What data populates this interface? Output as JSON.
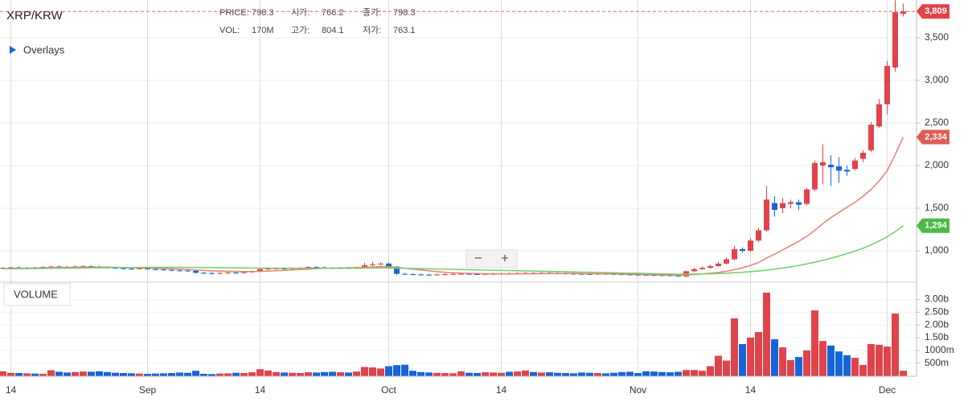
{
  "chart_data": {
    "type": "candlestick",
    "title": "XRP/KRW",
    "header": {
      "price_label": "PRICE:",
      "price": 798.3,
      "open_label": "시가:",
      "open": 766.2,
      "close_label": "종가:",
      "close": 798.3,
      "vol_label": "VOL:",
      "vol": "170M",
      "high_label": "고가:",
      "high": 804.1,
      "low_label": "저가:",
      "low": 763.1
    },
    "overlays": "Overlays",
    "volume_title": "VOLUME",
    "zoom_out": "−",
    "zoom_in": "+",
    "categories": [
      null,
      "14",
      null,
      null,
      null,
      null,
      null,
      null,
      null,
      null,
      null,
      null,
      null,
      null,
      null,
      null,
      null,
      null,
      "Sep",
      null,
      null,
      null,
      null,
      null,
      null,
      null,
      null,
      null,
      null,
      null,
      null,
      null,
      "14",
      null,
      null,
      null,
      null,
      null,
      null,
      null,
      null,
      null,
      null,
      null,
      null,
      null,
      null,
      null,
      "Oct",
      null,
      null,
      null,
      null,
      null,
      null,
      null,
      null,
      null,
      null,
      null,
      null,
      null,
      "14",
      null,
      null,
      null,
      null,
      null,
      null,
      null,
      null,
      null,
      null,
      null,
      null,
      null,
      null,
      null,
      null,
      "Nov",
      null,
      null,
      null,
      null,
      null,
      null,
      null,
      null,
      null,
      null,
      null,
      null,
      null,
      "14",
      null,
      null,
      null,
      null,
      null,
      null,
      null,
      null,
      null,
      null,
      null,
      null,
      null,
      null,
      null,
      null,
      "Dec",
      null,
      null
    ],
    "open": [
      795,
      800,
      805,
      798,
      802,
      795,
      810,
      815,
      812,
      808,
      816,
      820,
      815,
      806,
      800,
      795,
      790,
      788,
      792,
      785,
      780,
      776,
      770,
      768,
      765,
      742,
      738,
      735,
      740,
      745,
      742,
      748,
      760,
      785,
      790,
      792,
      788,
      795,
      800,
      810,
      805,
      798,
      795,
      800,
      796,
      805,
      830,
      840,
      850,
      815,
      730,
      725,
      722,
      720,
      718,
      722,
      725,
      728,
      730,
      726,
      724,
      728,
      730,
      735,
      732,
      738,
      740,
      736,
      742,
      738,
      735,
      732,
      730,
      728,
      726,
      730,
      728,
      725,
      722,
      720,
      718,
      716,
      714,
      712,
      710,
      700,
      760,
      785,
      800,
      820,
      850,
      900,
      1020,
      1000,
      1120,
      1240,
      1560,
      1500,
      1550,
      1570,
      1550,
      1720,
      2000,
      2010,
      1990,
      1950,
      1960,
      2080,
      2180,
      2460,
      2720,
      3150,
      3780
    ],
    "high": [
      810,
      815,
      815,
      812,
      812,
      820,
      825,
      825,
      822,
      826,
      830,
      830,
      825,
      816,
      810,
      805,
      800,
      802,
      802,
      795,
      790,
      786,
      780,
      778,
      775,
      752,
      748,
      750,
      755,
      755,
      758,
      770,
      795,
      800,
      802,
      802,
      805,
      810,
      820,
      820,
      815,
      808,
      810,
      810,
      815,
      860,
      870,
      865,
      860,
      820,
      740,
      735,
      732,
      730,
      732,
      735,
      738,
      740,
      740,
      736,
      738,
      740,
      745,
      745,
      748,
      750,
      750,
      752,
      752,
      748,
      745,
      742,
      740,
      738,
      740,
      740,
      738,
      735,
      732,
      730,
      728,
      726,
      724,
      722,
      720,
      770,
      800,
      815,
      835,
      870,
      920,
      1060,
      1040,
      1150,
      1270,
      1760,
      1640,
      1620,
      1600,
      1600,
      1740,
      2060,
      2250,
      2120,
      2100,
      2000,
      2090,
      2180,
      2510,
      2780,
      3230,
      3940,
      3900
    ],
    "low": [
      785,
      790,
      788,
      788,
      785,
      785,
      800,
      802,
      798,
      798,
      806,
      805,
      796,
      790,
      785,
      780,
      778,
      778,
      775,
      770,
      766,
      760,
      758,
      755,
      732,
      728,
      725,
      725,
      730,
      732,
      732,
      738,
      750,
      775,
      780,
      778,
      778,
      785,
      790,
      795,
      788,
      785,
      785,
      786,
      786,
      795,
      820,
      830,
      805,
      720,
      715,
      712,
      710,
      708,
      708,
      712,
      715,
      718,
      716,
      714,
      714,
      718,
      720,
      722,
      722,
      728,
      726,
      726,
      728,
      725,
      722,
      720,
      718,
      716,
      716,
      718,
      715,
      712,
      710,
      708,
      706,
      704,
      702,
      700,
      690,
      690,
      750,
      775,
      790,
      810,
      840,
      890,
      980,
      990,
      1100,
      1220,
      1400,
      1440,
      1500,
      1480,
      1530,
      1700,
      1780,
      1760,
      1800,
      1880,
      1940,
      2040,
      2160,
      2440,
      2600,
      3100,
      3750
    ],
    "close": [
      800,
      805,
      798,
      802,
      795,
      810,
      815,
      812,
      808,
      816,
      820,
      815,
      806,
      800,
      795,
      790,
      788,
      792,
      785,
      780,
      776,
      770,
      768,
      765,
      742,
      738,
      735,
      740,
      745,
      742,
      748,
      760,
      785,
      790,
      792,
      788,
      795,
      800,
      810,
      805,
      798,
      795,
      800,
      796,
      805,
      830,
      840,
      850,
      815,
      730,
      725,
      722,
      720,
      718,
      722,
      725,
      728,
      730,
      726,
      724,
      728,
      730,
      735,
      732,
      738,
      740,
      736,
      742,
      738,
      735,
      732,
      730,
      728,
      726,
      730,
      728,
      725,
      722,
      720,
      718,
      716,
      714,
      712,
      710,
      700,
      760,
      785,
      800,
      820,
      850,
      900,
      1020,
      1000,
      1120,
      1240,
      1600,
      1480,
      1560,
      1570,
      1540,
      1720,
      2030,
      2040,
      1980,
      1940,
      1930,
      2060,
      2150,
      2480,
      2720,
      3170,
      3800,
      3809
    ],
    "volume": [
      180,
      120,
      110,
      100,
      90,
      80,
      220,
      160,
      130,
      150,
      170,
      160,
      180,
      150,
      120,
      110,
      100,
      90,
      80,
      90,
      100,
      110,
      130,
      120,
      200,
      80,
      70,
      90,
      100,
      120,
      110,
      140,
      260,
      210,
      150,
      130,
      120,
      110,
      140,
      130,
      150,
      160,
      140,
      130,
      170,
      350,
      330,
      290,
      380,
      420,
      440,
      200,
      150,
      130,
      120,
      110,
      100,
      180,
      120,
      110,
      140,
      130,
      120,
      160,
      170,
      210,
      150,
      130,
      140,
      120,
      110,
      100,
      130,
      120,
      110,
      100,
      120,
      150,
      160,
      110,
      180,
      170,
      150,
      140,
      160,
      230,
      230,
      200,
      380,
      790,
      600,
      2260,
      1250,
      1500,
      1720,
      3270,
      1440,
      1120,
      620,
      740,
      1000,
      2570,
      1370,
      1190,
      960,
      810,
      710,
      430,
      1250,
      1220,
      1150,
      2450,
      200
    ],
    "moving_averages": [
      {
        "color": "#e57f73",
        "values": [
          790,
          792,
          794,
          796,
          798,
          800,
          802,
          804,
          805,
          806,
          808,
          808,
          808,
          807,
          806,
          804,
          802,
          800,
          798,
          795,
          792,
          788,
          784,
          780,
          775,
          770,
          765,
          762,
          760,
          758,
          756,
          756,
          758,
          762,
          766,
          770,
          775,
          780,
          785,
          790,
          794,
          796,
          798,
          800,
          802,
          806,
          810,
          815,
          812,
          805,
          795,
          785,
          775,
          765,
          755,
          748,
          742,
          738,
          735,
          732,
          730,
          729,
          728,
          728,
          729,
          730,
          731,
          732,
          733,
          734,
          734,
          734,
          733,
          732,
          731,
          730,
          729,
          727,
          725,
          723,
          721,
          719,
          717,
          714,
          712,
          716,
          722,
          728,
          736,
          746,
          760,
          778,
          800,
          828,
          862,
          915,
          960,
          1010,
          1060,
          1110,
          1170,
          1240,
          1320,
          1390,
          1450,
          1510,
          1570,
          1640,
          1720,
          1820,
          1940,
          2130,
          2334
        ]
      },
      {
        "color": "#6fcf6a",
        "values": [
          788,
          789,
          790,
          791,
          792,
          793,
          794,
          795,
          796,
          797,
          798,
          799,
          800,
          801,
          802,
          803,
          804,
          805,
          805,
          806,
          806,
          806,
          806,
          805,
          805,
          804,
          803,
          802,
          801,
          800,
          799,
          798,
          797,
          797,
          796,
          796,
          795,
          795,
          795,
          795,
          795,
          795,
          795,
          795,
          796,
          797,
          798,
          799,
          798,
          796,
          794,
          792,
          790,
          788,
          786,
          784,
          782,
          780,
          778,
          776,
          774,
          772,
          770,
          768,
          766,
          764,
          762,
          760,
          758,
          756,
          754,
          752,
          750,
          748,
          746,
          744,
          742,
          740,
          738,
          736,
          734,
          732,
          730,
          728,
          726,
          726,
          727,
          728,
          730,
          733,
          737,
          742,
          748,
          755,
          763,
          773,
          785,
          798,
          812,
          828,
          846,
          866,
          888,
          912,
          938,
          966,
          996,
          1030,
          1070,
          1115,
          1165,
          1225,
          1294
        ]
      }
    ],
    "up_color": "#e0434b",
    "down_color": "#1565d8",
    "last_labels": [
      {
        "value": 3809,
        "label": "3,809",
        "color": "#e0434b"
      },
      {
        "value": 2334,
        "label": "2,334",
        "color": "#e05c55"
      },
      {
        "value": 1294,
        "label": "1,294",
        "color": "#4cbb47"
      }
    ],
    "ylim": [
      641,
      3943
    ],
    "yticks": [
      {
        "value": 1000,
        "label": "1,000"
      },
      {
        "value": 1500,
        "label": "1,500"
      },
      {
        "value": 2000,
        "label": "2,000"
      },
      {
        "value": 2500,
        "label": "2,500"
      },
      {
        "value": 3000,
        "label": "3,000"
      },
      {
        "value": 3500,
        "label": "3,500"
      }
    ],
    "volume_ylim": [
      0,
      3680
    ],
    "volume_yticks": [
      {
        "value": 500,
        "label": "500m"
      },
      {
        "value": 1000,
        "label": "1000m"
      },
      {
        "value": 1500,
        "label": "1.50b"
      },
      {
        "value": 2000,
        "label": "2.00b"
      },
      {
        "value": 2500,
        "label": "2.50b"
      },
      {
        "value": 3000,
        "label": "3.00b"
      }
    ],
    "grid": true
  }
}
